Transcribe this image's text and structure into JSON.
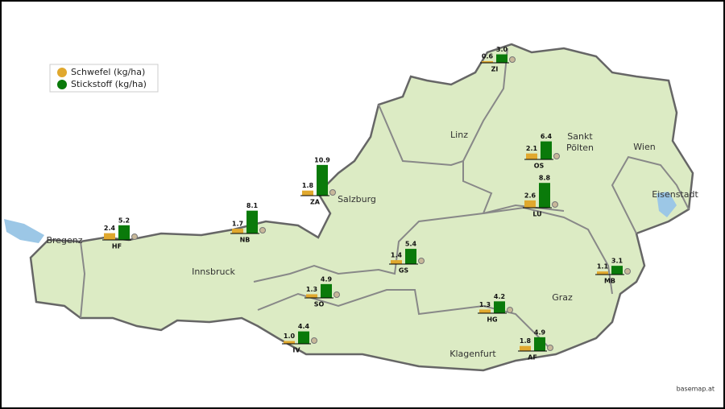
{
  "legend": [
    {
      "name": "Schwefel (kg/ha)",
      "color": "#e0a82e"
    },
    {
      "name": "Stickstoff (kg/ha)",
      "color": "#0a7a0a"
    }
  ],
  "cities": [
    "Linz",
    "Sankt",
    "Pölten",
    "Wien",
    "Salzburg",
    "Bregenz",
    "Innsbruck",
    "Graz",
    "Klagenfurt",
    "Eisenstadt"
  ],
  "stations": [
    {
      "label": "ZI",
      "sulfur": 0.6,
      "nitrogen": 3.0,
      "nitrogen_label": "3.0"
    },
    {
      "label": "ZA",
      "sulfur": 1.8,
      "nitrogen": 10.9
    },
    {
      "label": "OS",
      "sulfur": 2.1,
      "nitrogen": 6.4
    },
    {
      "label": "LU",
      "sulfur": 2.6,
      "nitrogen": 8.8
    },
    {
      "label": "HF",
      "sulfur": 2.4,
      "nitrogen": 5.2
    },
    {
      "label": "NB",
      "sulfur": 1.7,
      "nitrogen": 8.1
    },
    {
      "label": "GS",
      "sulfur": 1.4,
      "nitrogen": 5.4
    },
    {
      "label": "SO",
      "sulfur": 1.3,
      "nitrogen": 4.9
    },
    {
      "label": "MB",
      "sulfur": 1.1,
      "nitrogen": 3.1
    },
    {
      "label": "HG",
      "sulfur": 1.3,
      "nitrogen": 4.2
    },
    {
      "label": "IV",
      "sulfur": 1.0,
      "sulfur_label": "1.0",
      "nitrogen": 4.4
    },
    {
      "label": "AF",
      "sulfur": 1.8,
      "nitrogen": 4.9
    }
  ],
  "attribution": "basemap.at"
}
